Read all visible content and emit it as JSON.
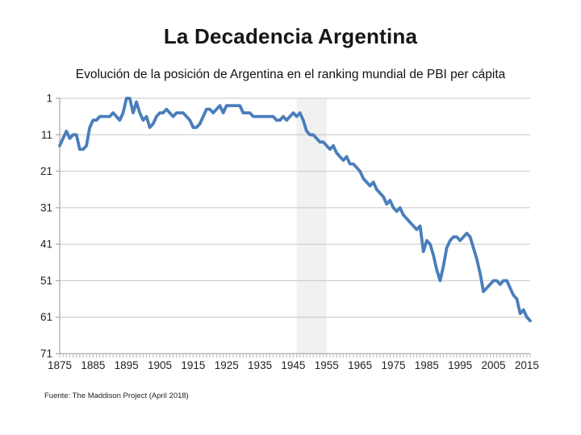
{
  "slide": {
    "title": "La Decadencia Argentina",
    "subtitle": "Evolución de la posición de Argentina en el ranking mundial de PBI per cápita",
    "source": "Fuente: The Maddison Project (April 2018)"
  },
  "chart_data": {
    "type": "line",
    "title": "La Decadencia Argentina",
    "subtitle": "Evolución de la posición de Argentina en el ranking mundial de PBI per cápita",
    "series_name": "Posición de Argentina en el ranking mundial de PBI per cápita",
    "x": [
      1875,
      1876,
      1877,
      1878,
      1879,
      1880,
      1881,
      1882,
      1883,
      1884,
      1885,
      1886,
      1887,
      1888,
      1889,
      1890,
      1891,
      1892,
      1893,
      1894,
      1895,
      1896,
      1897,
      1898,
      1899,
      1900,
      1901,
      1902,
      1903,
      1904,
      1905,
      1906,
      1907,
      1908,
      1909,
      1910,
      1911,
      1912,
      1913,
      1914,
      1915,
      1916,
      1917,
      1918,
      1919,
      1920,
      1921,
      1922,
      1923,
      1924,
      1925,
      1926,
      1927,
      1928,
      1929,
      1930,
      1931,
      1932,
      1933,
      1934,
      1935,
      1936,
      1937,
      1938,
      1939,
      1940,
      1941,
      1942,
      1943,
      1944,
      1945,
      1946,
      1947,
      1948,
      1949,
      1950,
      1951,
      1952,
      1953,
      1954,
      1955,
      1956,
      1957,
      1958,
      1959,
      1960,
      1961,
      1962,
      1963,
      1964,
      1965,
      1966,
      1967,
      1968,
      1969,
      1970,
      1971,
      1972,
      1973,
      1974,
      1975,
      1976,
      1977,
      1978,
      1979,
      1980,
      1981,
      1982,
      1983,
      1984,
      1985,
      1986,
      1987,
      1988,
      1989,
      1990,
      1991,
      1992,
      1993,
      1994,
      1995,
      1996,
      1997,
      1998,
      1999,
      2000,
      2001,
      2002,
      2003,
      2004,
      2005,
      2006,
      2007,
      2008,
      2009,
      2010,
      2011,
      2012,
      2013,
      2014,
      2015,
      2016
    ],
    "values": [
      14,
      12,
      10,
      12,
      11,
      11,
      15,
      15,
      14,
      9,
      7,
      7,
      6,
      6,
      6,
      6,
      5,
      6,
      7,
      5,
      1,
      1,
      5,
      2,
      5,
      7,
      6,
      9,
      8,
      6,
      5,
      5,
      4,
      5,
      6,
      5,
      5,
      5,
      6,
      7,
      9,
      9,
      8,
      6,
      4,
      4,
      5,
      4,
      3,
      5,
      3,
      3,
      3,
      3,
      3,
      5,
      5,
      5,
      6,
      6,
      6,
      6,
      6,
      6,
      6,
      7,
      7,
      6,
      7,
      6,
      5,
      6,
      5,
      7,
      10,
      11,
      11,
      12,
      13,
      13,
      14,
      15,
      14,
      16,
      17,
      18,
      17,
      19,
      19,
      20,
      21,
      23,
      24,
      25,
      24,
      26,
      27,
      28,
      30,
      29,
      31,
      32,
      31,
      33,
      34,
      35,
      36,
      37,
      36,
      43,
      40,
      41,
      44,
      48,
      51,
      47,
      42,
      40,
      39,
      39,
      40,
      39,
      38,
      39,
      42,
      45,
      49,
      54,
      53,
      52,
      51,
      51,
      52,
      51,
      51,
      53,
      55,
      56,
      60,
      59,
      61,
      62
    ],
    "xlabel": "",
    "ylabel": "",
    "xlim": [
      1875,
      2016
    ],
    "ylim": [
      1,
      71
    ],
    "y_axis_inverted": true,
    "y_ticks": [
      1,
      11,
      21,
      31,
      41,
      51,
      61,
      71
    ],
    "x_tick_labels": [
      1875,
      1885,
      1895,
      1905,
      1915,
      1925,
      1935,
      1945,
      1955,
      1965,
      1975,
      1985,
      1995,
      2005,
      2015
    ],
    "x_minor_tick_interval": 1,
    "grid": "horizontal",
    "legend": "none",
    "highlight_band": {
      "from": 1946,
      "to": 1955,
      "color": "#f1f1f1"
    },
    "line_color": "#4a7ebb",
    "line_width": 3.8,
    "gridline_color": "#c6c6c6",
    "axis_color": "#a8a8a8",
    "tick_color": "#b8b8b8",
    "label_color": "#222222"
  }
}
